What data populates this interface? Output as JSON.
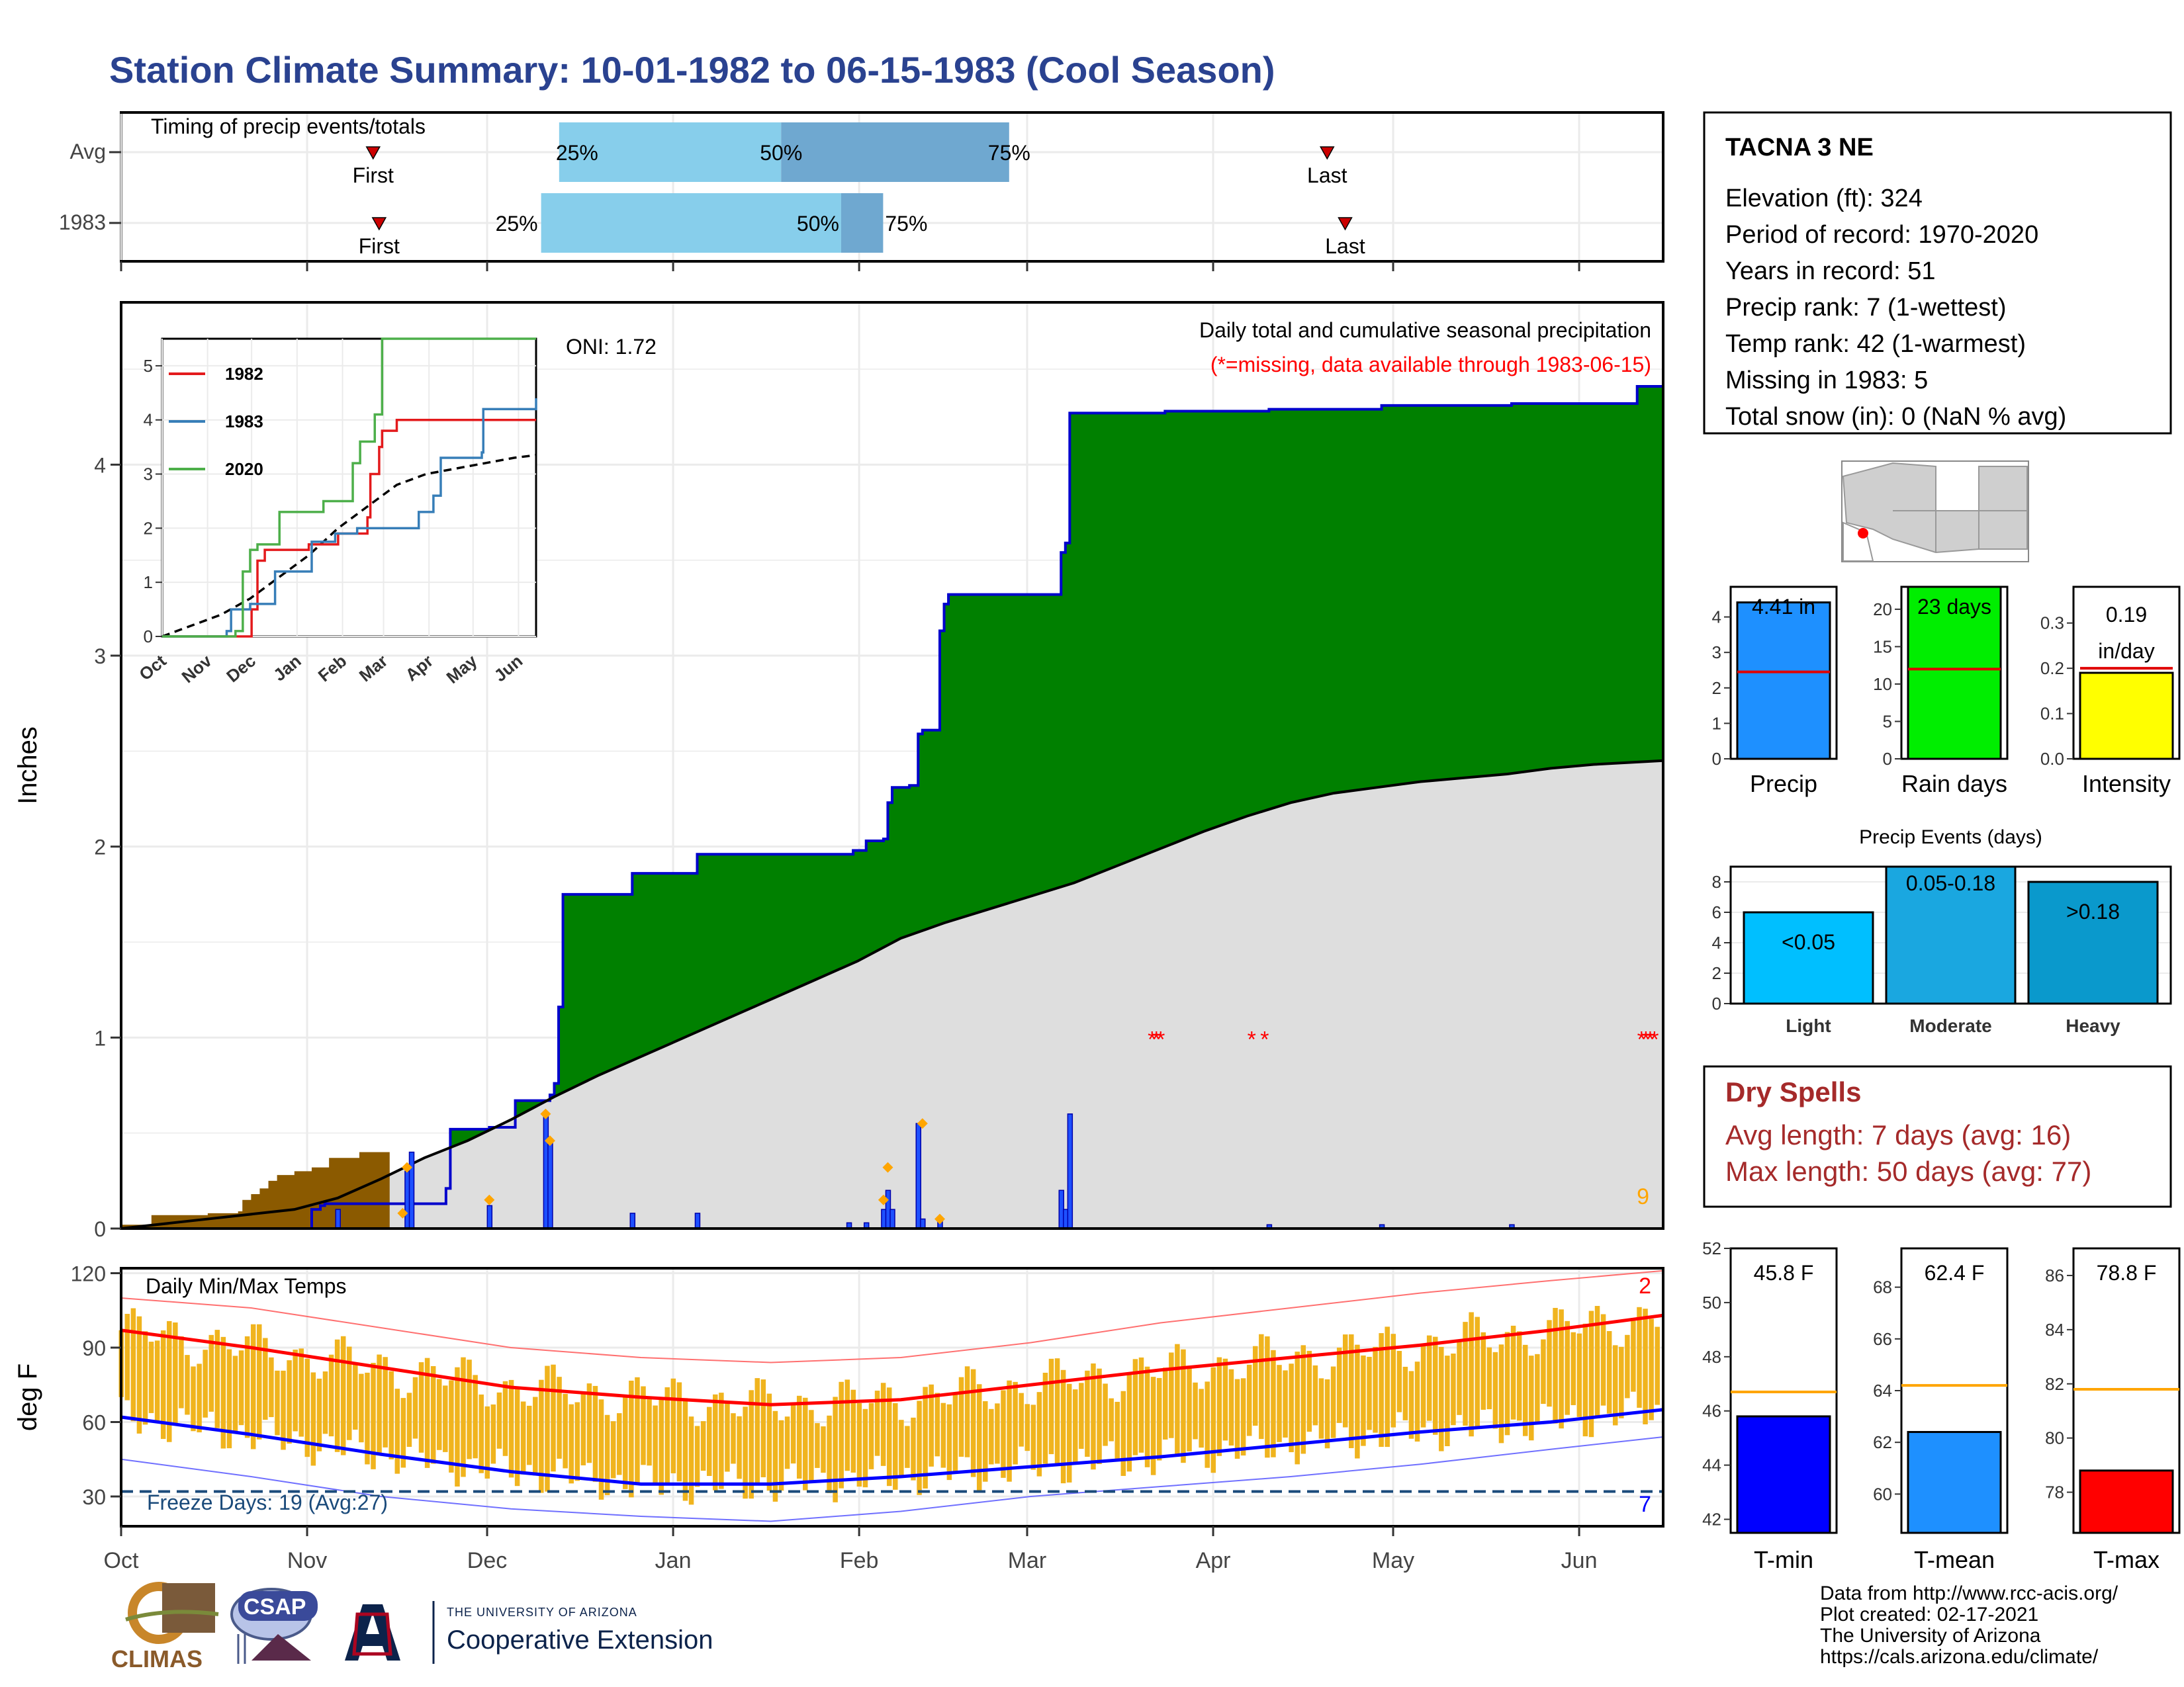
{
  "title": "Station Climate Summary: 10-01-1982 to 06-15-1983 (Cool Season)",
  "timing": {
    "label": "Timing of precip events/totals",
    "rows": [
      {
        "name": "Avg",
        "first_label": "First",
        "last_label": "Last",
        "first": "Nov 12",
        "last": "Apr 20",
        "q25": "Dec 13",
        "q50": "Jan 19",
        "q75": "Feb 26",
        "q25_label": "25%",
        "q50_label": "50%",
        "q75_label": "75%"
      },
      {
        "name": "1983",
        "first_label": "First",
        "last_label": "Last",
        "first": "Nov 13",
        "last": "Apr 23",
        "q25": "Dec 10",
        "q50": "Jan 29",
        "q75": "Feb 5",
        "q25_label": "25%",
        "q50_label": "50%",
        "q75_label": "75%"
      }
    ]
  },
  "months": [
    "Oct",
    "Nov",
    "Dec",
    "Jan",
    "Feb",
    "Mar",
    "Apr",
    "May",
    "Jun"
  ],
  "precip_chart": {
    "ylabel": "Inches",
    "yticks": [
      0,
      1,
      2,
      3,
      4
    ],
    "ymax": 4.85,
    "oni": "ONI: 1.72",
    "caption": "Daily total and cumulative seasonal precipitation",
    "missing_note": "(*=missing, data available through 1983-06-15)",
    "missing_count": "9",
    "missing_marker": "*",
    "cumulative_1983": [
      [
        0,
        0
      ],
      [
        43,
        0
      ],
      [
        44,
        0.1
      ],
      [
        46,
        0.12
      ],
      [
        47,
        0.13
      ],
      [
        74,
        0.13
      ],
      [
        75,
        0.21
      ],
      [
        76,
        0.52
      ],
      [
        84,
        0.52
      ],
      [
        85,
        0.53
      ],
      [
        90,
        0.53
      ],
      [
        91,
        0.67
      ],
      [
        98,
        0.67
      ],
      [
        99,
        0.7
      ],
      [
        100,
        0.76
      ],
      [
        101,
        1.16
      ],
      [
        102,
        1.75
      ],
      [
        117,
        1.75
      ],
      [
        118,
        1.86
      ],
      [
        132,
        1.86
      ],
      [
        133,
        1.96
      ],
      [
        168,
        1.96
      ],
      [
        169,
        1.98
      ],
      [
        172,
        2.03
      ],
      [
        176,
        2.04
      ],
      [
        177,
        2.23
      ],
      [
        178,
        2.31
      ],
      [
        182,
        2.32
      ],
      [
        184,
        2.59
      ],
      [
        185,
        2.61
      ],
      [
        188,
        2.61
      ],
      [
        189,
        3.13
      ],
      [
        190,
        3.27
      ],
      [
        191,
        3.32
      ],
      [
        216,
        3.32
      ],
      [
        217,
        3.54
      ],
      [
        218,
        3.59
      ],
      [
        219,
        4.27
      ],
      [
        240,
        4.27
      ],
      [
        241,
        4.28
      ],
      [
        264,
        4.28
      ],
      [
        265,
        4.29
      ],
      [
        290,
        4.29
      ],
      [
        291,
        4.31
      ],
      [
        320,
        4.31
      ],
      [
        321,
        4.32
      ],
      [
        349,
        4.32
      ],
      [
        350,
        4.41
      ],
      [
        356,
        4.41
      ]
    ],
    "cumulative_avg": [
      [
        0,
        0
      ],
      [
        20,
        0.05
      ],
      [
        40,
        0.1
      ],
      [
        50,
        0.16
      ],
      [
        60,
        0.26
      ],
      [
        70,
        0.37
      ],
      [
        80,
        0.46
      ],
      [
        90,
        0.57
      ],
      [
        100,
        0.69
      ],
      [
        110,
        0.8
      ],
      [
        120,
        0.9
      ],
      [
        130,
        1.0
      ],
      [
        140,
        1.1
      ],
      [
        150,
        1.2
      ],
      [
        160,
        1.3
      ],
      [
        170,
        1.4
      ],
      [
        180,
        1.52
      ],
      [
        190,
        1.6
      ],
      [
        200,
        1.67
      ],
      [
        210,
        1.74
      ],
      [
        220,
        1.81
      ],
      [
        230,
        1.9
      ],
      [
        240,
        1.99
      ],
      [
        250,
        2.08
      ],
      [
        260,
        2.16
      ],
      [
        270,
        2.23
      ],
      [
        280,
        2.28
      ],
      [
        290,
        2.31
      ],
      [
        300,
        2.34
      ],
      [
        310,
        2.36
      ],
      [
        320,
        2.38
      ],
      [
        330,
        2.41
      ],
      [
        340,
        2.43
      ],
      [
        356,
        2.45
      ]
    ],
    "cumulative_1982": [
      [
        0,
        0.02
      ],
      [
        6,
        0.02
      ],
      [
        7,
        0.07
      ],
      [
        20,
        0.08
      ],
      [
        27,
        0.09
      ],
      [
        28,
        0.15
      ],
      [
        30,
        0.18
      ],
      [
        32,
        0.21
      ],
      [
        34,
        0.25
      ],
      [
        36,
        0.28
      ],
      [
        40,
        0.3
      ],
      [
        44,
        0.32
      ],
      [
        48,
        0.37
      ],
      [
        55,
        0.4
      ],
      [
        62,
        0.4
      ]
    ],
    "daily_bars": [
      [
        50,
        0.1
      ],
      [
        66,
        0.3
      ],
      [
        67,
        0.4
      ],
      [
        85,
        0.12
      ],
      [
        98,
        0.6
      ],
      [
        99,
        0.45
      ],
      [
        118,
        0.08
      ],
      [
        133,
        0.08
      ],
      [
        168,
        0.03
      ],
      [
        172,
        0.03
      ],
      [
        176,
        0.1
      ],
      [
        177,
        0.2
      ],
      [
        178,
        0.1
      ],
      [
        184,
        0.55
      ],
      [
        185,
        0.05
      ],
      [
        189,
        0.05
      ],
      [
        217,
        0.2
      ],
      [
        218,
        0.1
      ],
      [
        219,
        0.6
      ],
      [
        265,
        0.02
      ],
      [
        291,
        0.02
      ],
      [
        321,
        0.02
      ]
    ],
    "daily_markers": [
      [
        65,
        0.08
      ],
      [
        66,
        0.32
      ],
      [
        85,
        0.15
      ],
      [
        98,
        0.6
      ],
      [
        99,
        0.46
      ],
      [
        176,
        0.15
      ],
      [
        177,
        0.32
      ],
      [
        185,
        0.55
      ],
      [
        189,
        0.05
      ]
    ],
    "missing_days": [
      238,
      239,
      240,
      261,
      264,
      351,
      352,
      353,
      354
    ],
    "inset": {
      "xlabels": [
        "Oct",
        "Nov",
        "Dec",
        "Jan",
        "Feb",
        "Mar",
        "Apr",
        "May",
        "Jun"
      ],
      "yticks": [
        0,
        1,
        2,
        3,
        4,
        5
      ],
      "legend": [
        {
          "name": "1982",
          "color": "#e31a1c"
        },
        {
          "name": "1983",
          "color": "#377eb8"
        },
        {
          "name": "2020",
          "color": "#4daf4a"
        }
      ],
      "series_1982": [
        [
          0,
          0
        ],
        [
          60,
          0
        ],
        [
          61,
          0.5
        ],
        [
          65,
          1.4
        ],
        [
          70,
          1.6
        ],
        [
          100,
          1.7
        ],
        [
          120,
          1.9
        ],
        [
          140,
          2.2
        ],
        [
          142,
          3.0
        ],
        [
          148,
          3.5
        ],
        [
          150,
          3.8
        ],
        [
          160,
          4.0
        ],
        [
          255,
          4.0
        ]
      ],
      "series_1983": [
        [
          0,
          0
        ],
        [
          44,
          0.1
        ],
        [
          47,
          0.5
        ],
        [
          60,
          0.6
        ],
        [
          77,
          1.2
        ],
        [
          102,
          1.75
        ],
        [
          118,
          1.9
        ],
        [
          133,
          2.0
        ],
        [
          175,
          2.3
        ],
        [
          185,
          2.6
        ],
        [
          190,
          3.3
        ],
        [
          218,
          3.4
        ],
        [
          219,
          4.2
        ],
        [
          255,
          4.4
        ]
      ],
      "series_2020": [
        [
          0,
          0
        ],
        [
          50,
          0.1
        ],
        [
          55,
          1.2
        ],
        [
          60,
          1.6
        ],
        [
          65,
          1.7
        ],
        [
          80,
          2.3
        ],
        [
          110,
          2.5
        ],
        [
          130,
          3.2
        ],
        [
          135,
          3.6
        ],
        [
          145,
          4.1
        ],
        [
          150,
          5.5
        ],
        [
          255,
          5.5
        ]
      ],
      "series_avg": [
        [
          0,
          0
        ],
        [
          20,
          0.2
        ],
        [
          40,
          0.4
        ],
        [
          60,
          0.7
        ],
        [
          80,
          1.1
        ],
        [
          100,
          1.5
        ],
        [
          120,
          2.0
        ],
        [
          140,
          2.4
        ],
        [
          160,
          2.8
        ],
        [
          180,
          3.0
        ],
        [
          200,
          3.1
        ],
        [
          220,
          3.2
        ],
        [
          240,
          3.3
        ],
        [
          255,
          3.35
        ]
      ]
    }
  },
  "temp_chart": {
    "label": "Daily Min/Max Temps",
    "ylabel": "deg F",
    "yticks": [
      30,
      60,
      90,
      120
    ],
    "ylim": [
      18,
      122
    ],
    "freeze_line": 32,
    "freeze_label": "Freeze Days: 19 (Avg:27)",
    "record_high_count": "2",
    "record_low_count": "7",
    "avg_max": [
      [
        0,
        97
      ],
      [
        30,
        90
      ],
      [
        60,
        82
      ],
      [
        90,
        74
      ],
      [
        120,
        70
      ],
      [
        150,
        67
      ],
      [
        180,
        69
      ],
      [
        210,
        75
      ],
      [
        240,
        81
      ],
      [
        270,
        86
      ],
      [
        300,
        91
      ],
      [
        330,
        97
      ],
      [
        356,
        103
      ]
    ],
    "avg_min": [
      [
        0,
        62
      ],
      [
        30,
        55
      ],
      [
        60,
        47
      ],
      [
        90,
        40
      ],
      [
        120,
        35
      ],
      [
        150,
        35
      ],
      [
        180,
        38
      ],
      [
        210,
        42
      ],
      [
        240,
        46
      ],
      [
        270,
        51
      ],
      [
        300,
        56
      ],
      [
        330,
        60
      ],
      [
        356,
        65
      ]
    ],
    "rec_max": [
      [
        0,
        110
      ],
      [
        30,
        106
      ],
      [
        60,
        98
      ],
      [
        90,
        90
      ],
      [
        120,
        86
      ],
      [
        150,
        84
      ],
      [
        180,
        86
      ],
      [
        210,
        92
      ],
      [
        240,
        100
      ],
      [
        270,
        106
      ],
      [
        300,
        112
      ],
      [
        330,
        117
      ],
      [
        356,
        121
      ]
    ],
    "rec_min": [
      [
        0,
        45
      ],
      [
        30,
        38
      ],
      [
        60,
        30
      ],
      [
        90,
        25
      ],
      [
        120,
        22
      ],
      [
        150,
        20
      ],
      [
        180,
        24
      ],
      [
        210,
        30
      ],
      [
        240,
        34
      ],
      [
        270,
        38
      ],
      [
        300,
        43
      ],
      [
        330,
        49
      ],
      [
        356,
        54
      ]
    ]
  },
  "station": {
    "name": "TACNA 3 NE",
    "lines": [
      "Elevation (ft): 324",
      "Period of record: 1970-2020",
      "Years in record: 51",
      "Precip rank: 7 (1-wettest)",
      "Temp rank: 42 (1-warmest)",
      "Missing in 1983: 5",
      "Total snow (in): 0 (NaN % avg)"
    ]
  },
  "mini_precip": [
    {
      "label": "Precip",
      "value": 4.41,
      "value_label": "4.41 in",
      "avg": 2.45,
      "ymax": 4.85,
      "yticks": [
        0,
        1,
        2,
        3,
        4
      ],
      "color": "#1e90ff"
    },
    {
      "label": "Rain days",
      "value": 23,
      "value_label": "23 days",
      "avg": 12,
      "ymax": 23,
      "yticks": [
        0,
        5,
        10,
        15,
        20
      ],
      "color": "#00ee00"
    },
    {
      "label": "Intensity",
      "value": 0.19,
      "value_label": "0.19 in/day",
      "avg": 0.2,
      "ymax": 0.38,
      "yticks": [
        "0.0",
        "0.1",
        "0.2",
        "0.3"
      ],
      "color": "#ffff00"
    }
  ],
  "events": {
    "title": "Precip Events (days)",
    "yticks": [
      0,
      2,
      4,
      6,
      8
    ],
    "ymax": 9,
    "bars": [
      {
        "label": "Light",
        "range": "<0.05",
        "value": 6,
        "color": "#00bfff"
      },
      {
        "label": "Moderate",
        "range": "0.05-0.18",
        "value": 9,
        "color": "#1aa7e0"
      },
      {
        "label": "Heavy",
        "range": ">0.18",
        "value": 8,
        "color": "#0a99cc"
      }
    ]
  },
  "dry_spells": {
    "title": "Dry Spells",
    "avg_line": "Avg length: 7 days (avg: 16)",
    "max_line": "Max length: 50 days (avg: 77)"
  },
  "temp_bars": [
    {
      "label": "T-min",
      "value_label": "45.8 F",
      "value": 45.8,
      "avg": 46.7,
      "ylim": [
        41.5,
        52
      ],
      "yticks": [
        42,
        44,
        46,
        48,
        50,
        52
      ],
      "color": "#0000ff"
    },
    {
      "label": "T-mean",
      "value_label": "62.4 F",
      "value": 62.4,
      "avg": 64.2,
      "ylim": [
        58.5,
        69.5
      ],
      "yticks": [
        60,
        62,
        64,
        66,
        68
      ],
      "color": "#1e90ff"
    },
    {
      "label": "T-max",
      "value_label": "78.8 F",
      "value": 78.8,
      "avg": 81.8,
      "ylim": [
        76.5,
        87
      ],
      "yticks": [
        78,
        80,
        82,
        84,
        86
      ],
      "color": "#ff0000"
    }
  ],
  "footer": {
    "lines": [
      "Data from http://www.rcc-acis.org/",
      "Plot created: 02-17-2021",
      "The University of Arizona",
      "https://cals.arizona.edu/climate/"
    ],
    "logos": {
      "climas": "CLIMAS",
      "csap": "CSAP",
      "ua_small": "THE UNIVERSITY OF ARIZONA",
      "ua_big": "Cooperative Extension"
    }
  },
  "colors": {
    "title": "#2a4290",
    "green": "#008000",
    "brown": "#8b5a00",
    "grey_fill": "#dedede",
    "blue_line": "#0000cc",
    "orange": "#ffa500",
    "red": "#ff0000",
    "dry_red": "#a52a2a"
  }
}
